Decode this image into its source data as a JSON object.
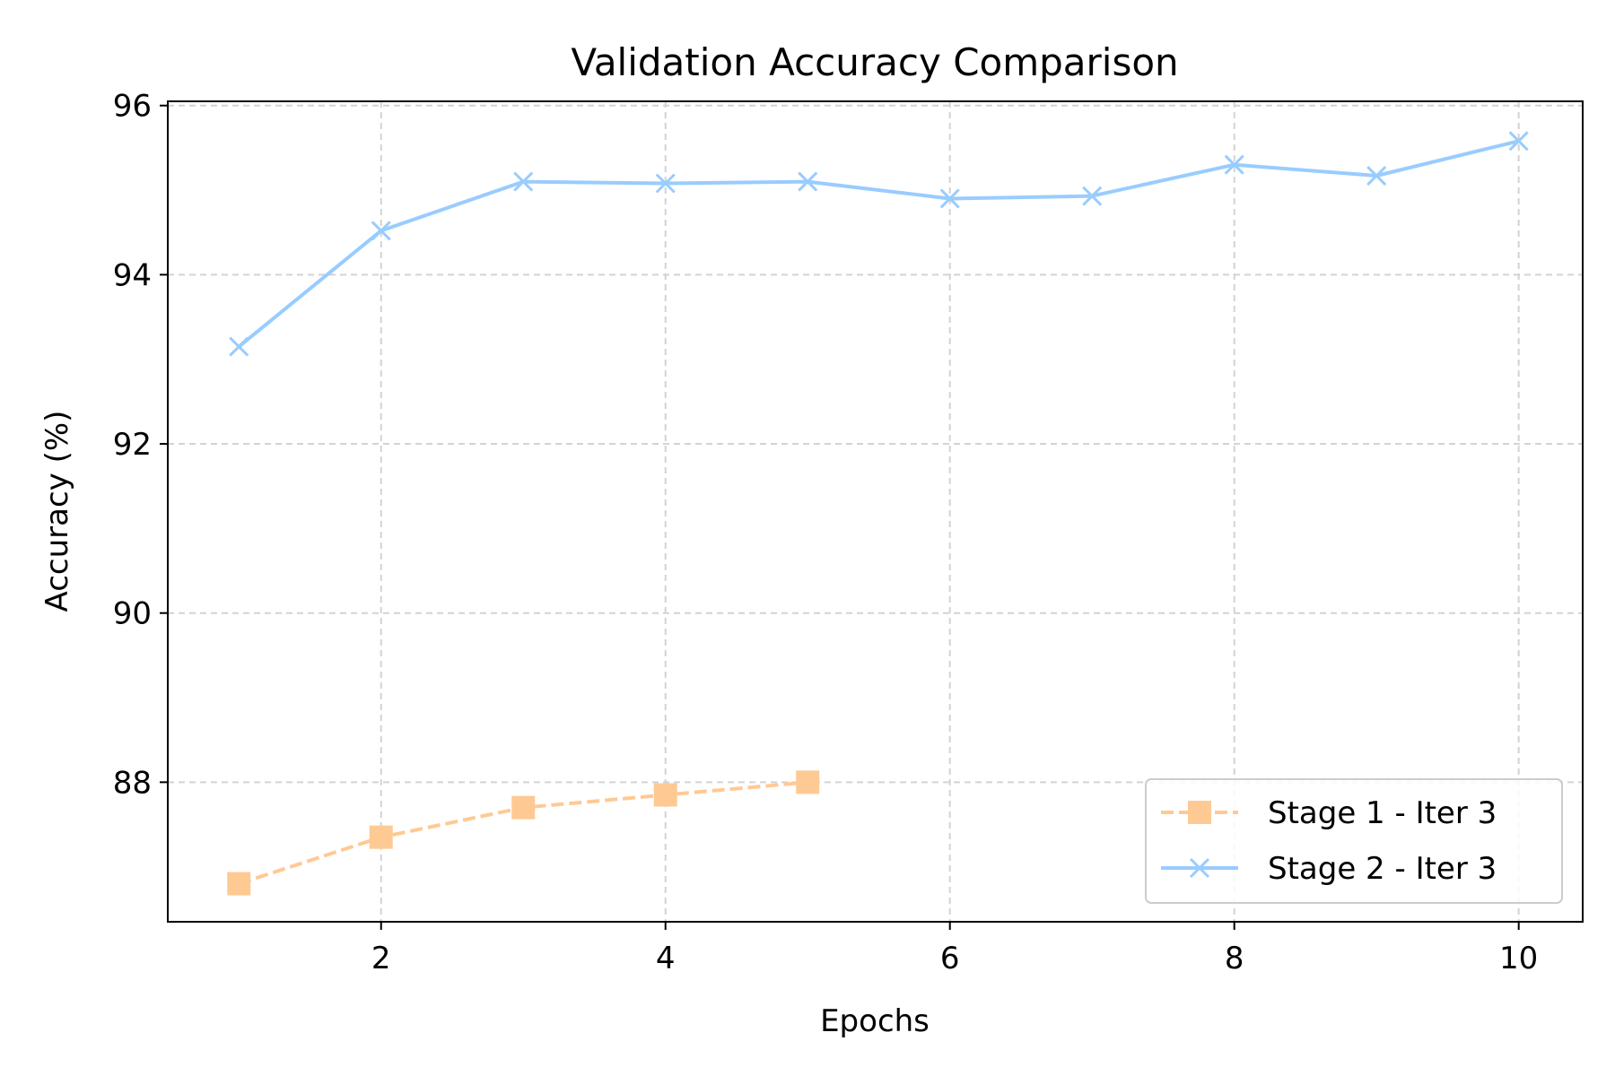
{
  "chart_data": {
    "type": "line",
    "title": "Validation Accuracy Comparison",
    "xlabel": "Epochs",
    "ylabel": "Accuracy (%)",
    "xlim": [
      0.5,
      10.45
    ],
    "ylim": [
      86.35,
      96.05
    ],
    "xticks": [
      2,
      4,
      6,
      8,
      10
    ],
    "yticks": [
      88,
      90,
      92,
      94,
      96
    ],
    "grid": true,
    "legend_position": "lower right",
    "series": [
      {
        "name": "Stage 1 - Iter 3",
        "x": [
          1,
          2,
          3,
          4,
          5
        ],
        "values": [
          86.8,
          87.35,
          87.7,
          87.85,
          88.0
        ],
        "color": "#ffc994",
        "line_style": "dashed",
        "marker": "square"
      },
      {
        "name": "Stage 2 - Iter 3",
        "x": [
          1,
          2,
          3,
          4,
          5,
          6,
          7,
          8,
          9,
          10
        ],
        "values": [
          93.15,
          94.52,
          95.1,
          95.08,
          95.1,
          94.9,
          94.93,
          95.3,
          95.17,
          95.58
        ],
        "color": "#99ccff",
        "line_style": "solid",
        "marker": "x"
      }
    ]
  }
}
